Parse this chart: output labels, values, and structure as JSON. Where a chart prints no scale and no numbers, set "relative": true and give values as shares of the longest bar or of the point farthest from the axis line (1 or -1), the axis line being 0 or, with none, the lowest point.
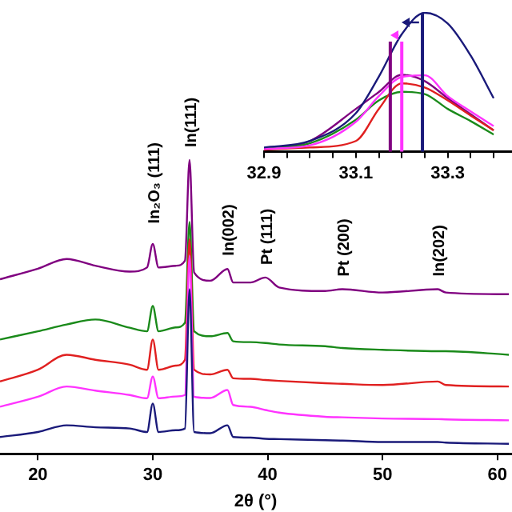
{
  "chart_data": [
    {
      "type": "line",
      "relative": true,
      "xlabel": "2θ (°)",
      "x": [
        16.7,
        20,
        22.5,
        25,
        28,
        29.5,
        30,
        30.5,
        32,
        32.8,
        33.2,
        33.6,
        35,
        36.5,
        37,
        38.5,
        39.8,
        41,
        45,
        46.5,
        50,
        54.8,
        55.5,
        61
      ],
      "series": [
        {
          "color": "#1a1a7a",
          "values": [
            0.057,
            0.074,
            0.097,
            0.09,
            0.086,
            0.074,
            0.171,
            0.074,
            0.08,
            0.086,
            0.56,
            0.074,
            0.07,
            0.097,
            0.057,
            0.055,
            0.051,
            0.05,
            0.046,
            0.045,
            0.04,
            0.04,
            0.038,
            0.034
          ]
        },
        {
          "color": "#ff33ff",
          "values": [
            0.16,
            0.194,
            0.229,
            0.215,
            0.2,
            0.189,
            0.263,
            0.189,
            0.195,
            0.2,
            0.674,
            0.194,
            0.19,
            0.217,
            0.166,
            0.16,
            0.149,
            0.14,
            0.126,
            0.124,
            0.12,
            0.118,
            0.117,
            0.114
          ]
        },
        {
          "color": "#e02020",
          "values": [
            0.246,
            0.286,
            0.337,
            0.32,
            0.303,
            0.286,
            0.389,
            0.286,
            0.3,
            0.32,
            0.731,
            0.286,
            0.27,
            0.286,
            0.257,
            0.255,
            0.251,
            0.248,
            0.24,
            0.238,
            0.234,
            0.246,
            0.234,
            0.229
          ]
        },
        {
          "color": "#1a8a1a",
          "values": [
            0.389,
            0.417,
            0.44,
            0.457,
            0.429,
            0.417,
            0.503,
            0.417,
            0.43,
            0.446,
            0.789,
            0.417,
            0.4,
            0.411,
            0.383,
            0.38,
            0.377,
            0.372,
            0.366,
            0.36,
            0.354,
            0.349,
            0.349,
            0.337
          ]
        },
        {
          "color": "#800080",
          "values": [
            0.594,
            0.63,
            0.663,
            0.64,
            0.62,
            0.634,
            0.714,
            0.634,
            0.64,
            0.657,
            1.0,
            0.617,
            0.589,
            0.629,
            0.583,
            0.583,
            0.6,
            0.566,
            0.554,
            0.56,
            0.549,
            0.56,
            0.549,
            0.543
          ]
        }
      ],
      "xlim": [
        16.7,
        61.2
      ],
      "xticks": [
        20,
        30,
        40,
        50,
        60
      ],
      "tick_labels": "x",
      "grid": false,
      "legend": false,
      "marker": "none",
      "line_style": "solid",
      "annotations": [
        {
          "text": "In₂O₃ (111)",
          "x": 30,
          "y": 0.74
        },
        {
          "text": "In(111)",
          "x": 33.2,
          "y": 1.0
        },
        {
          "text": "In(002)",
          "x": 36.5,
          "y": 0.63
        },
        {
          "text": "Pt (111)",
          "x": 39.8,
          "y": 0.6
        },
        {
          "text": "Pt (200)",
          "x": 46.5,
          "y": 0.56
        },
        {
          "text": "In(202)",
          "x": 54.8,
          "y": 0.56
        }
      ]
    },
    {
      "type": "line",
      "relative": true,
      "x": [
        32.9,
        33.0,
        33.1,
        33.15,
        33.2,
        33.25,
        33.3,
        33.35,
        33.4
      ],
      "series": [
        {
          "color": "#1a1a7a",
          "values": [
            0.03,
            0.077,
            0.277,
            0.54,
            0.846,
            1.0,
            0.923,
            0.692,
            0.385
          ]
        },
        {
          "color": "#ff33ff",
          "values": [
            0.02,
            0.046,
            0.215,
            0.4,
            0.538,
            0.55,
            0.4,
            0.29,
            0.185
          ]
        },
        {
          "color": "#e02020",
          "values": [
            0.015,
            0.03,
            0.077,
            0.308,
            0.492,
            0.462,
            0.369,
            0.26,
            0.154
          ]
        },
        {
          "color": "#1a8a1a",
          "values": [
            0.02,
            0.06,
            0.23,
            0.369,
            0.431,
            0.415,
            0.308,
            0.22,
            0.123
          ]
        },
        {
          "color": "#800080",
          "values": [
            0.015,
            0.077,
            0.308,
            0.43,
            0.554,
            0.508,
            0.385,
            0.27,
            0.154
          ]
        }
      ],
      "xlim": [
        32.9,
        33.44
      ],
      "xticks": [
        32.9,
        {
          "value": 32.95,
          "label": null
        },
        {
          "value": 33.0,
          "label": null
        },
        {
          "value": 33.05,
          "label": null
        },
        33.1,
        {
          "value": 33.15,
          "label": null
        },
        {
          "value": 33.2,
          "label": null
        },
        {
          "value": 33.25,
          "label": null
        },
        33.3,
        {
          "value": 33.35,
          "label": null
        },
        {
          "value": 33.4,
          "label": null
        }
      ],
      "tick_labels": "x",
      "grid": false,
      "legend": false,
      "marker": "none",
      "line_style": "solid",
      "ref_lines": [
        {
          "axis": "x",
          "value": 33.175,
          "color": "#800080"
        },
        {
          "axis": "x",
          "value": 33.2,
          "color": "#ff33ff"
        },
        {
          "axis": "x",
          "value": 33.245,
          "color": "#1a1a7a"
        }
      ]
    }
  ]
}
